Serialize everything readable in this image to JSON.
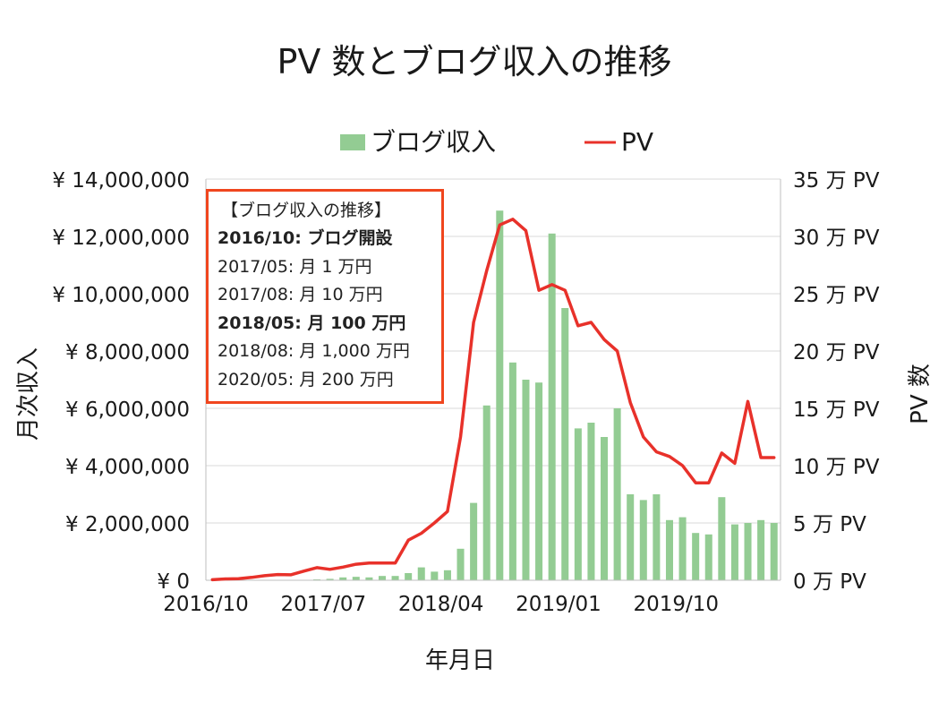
{
  "chart_data": {
    "type": "bar+line",
    "title": "PV 数とブログ収入の推移",
    "xlabel": "年月日",
    "ylabel_left": "月次収入",
    "ylabel_right": "PV 数",
    "legend": {
      "position": "top",
      "items": [
        "ブログ収入",
        "PV"
      ]
    },
    "colors": {
      "bar": "#93cc93",
      "line": "#e8312a",
      "grid": "#d9d9d9",
      "note_border": "#f0461e"
    },
    "y_left": {
      "min": 0,
      "max": 14000000,
      "ticks": [
        "¥ 0",
        "¥ 2,000,000",
        "¥ 4,000,000",
        "¥ 6,000,000",
        "¥ 8,000,000",
        "¥ 10,000,000",
        "¥ 12,000,000",
        "¥ 14,000,000"
      ]
    },
    "y_right": {
      "min": 0,
      "max": 350000,
      "ticks": [
        "0 万 PV",
        "5 万 PV",
        "10 万 PV",
        "15 万 PV",
        "20 万 PV",
        "25 万 PV",
        "30 万 PV",
        "35 万 PV"
      ]
    },
    "x_tick_labels": [
      {
        "index": 0,
        "label": "2016/10"
      },
      {
        "index": 9,
        "label": "2017/07"
      },
      {
        "index": 18,
        "label": "2018/04"
      },
      {
        "index": 27,
        "label": "2019/01"
      },
      {
        "index": 36,
        "label": "2019/10"
      }
    ],
    "months": [
      "2016/10",
      "2016/11",
      "2016/12",
      "2017/01",
      "2017/02",
      "2017/03",
      "2017/04",
      "2017/05",
      "2017/06",
      "2017/07",
      "2017/08",
      "2017/09",
      "2017/10",
      "2017/11",
      "2017/12",
      "2018/01",
      "2018/02",
      "2018/03",
      "2018/04",
      "2018/05",
      "2018/06",
      "2018/07",
      "2018/08",
      "2018/09",
      "2018/10",
      "2018/11",
      "2018/12",
      "2019/01",
      "2019/02",
      "2019/03",
      "2019/04",
      "2019/05",
      "2019/06",
      "2019/07",
      "2019/08",
      "2019/09",
      "2019/10",
      "2019/11",
      "2019/12",
      "2020/01",
      "2020/02",
      "2020/03",
      "2020/04",
      "2020/05"
    ],
    "series": [
      {
        "name": "ブログ収入",
        "kind": "bar",
        "axis": "left",
        "values": [
          0,
          0,
          0,
          0,
          0,
          0,
          0,
          10000,
          30000,
          50000,
          100000,
          120000,
          100000,
          150000,
          150000,
          250000,
          450000,
          300000,
          350000,
          1100000,
          2700000,
          6100000,
          12900000,
          7600000,
          7000000,
          6900000,
          12100000,
          9500000,
          5300000,
          5500000,
          5000000,
          6000000,
          3000000,
          2800000,
          3000000,
          2100000,
          2200000,
          1650000,
          1600000,
          2900000,
          1950000,
          2000000,
          2100000,
          2000000
        ]
      },
      {
        "name": "PV",
        "kind": "line",
        "axis": "right",
        "values": [
          500,
          1200,
          1300,
          2500,
          4000,
          5000,
          4800,
          8000,
          11000,
          9500,
          11500,
          14000,
          15000,
          15000,
          15000,
          35000,
          41000,
          50000,
          60000,
          125000,
          225000,
          270000,
          310000,
          315000,
          305000,
          253000,
          258000,
          253000,
          222000,
          225000,
          210000,
          200000,
          155000,
          125000,
          112000,
          108000,
          100000,
          85000,
          85000,
          111000,
          102000,
          156000,
          107000,
          107000
        ]
      }
    ]
  },
  "note_box": {
    "title": "【ブログ収入の推移】",
    "lines": [
      {
        "text": "2016/10: ブログ開設",
        "bold": true
      },
      {
        "text": "2017/05: 月 1 万円",
        "bold": false
      },
      {
        "text": "2017/08: 月 10 万円",
        "bold": false
      },
      {
        "text": "2018/05: 月 100 万円",
        "bold": true
      },
      {
        "text": "2018/08: 月 1,000 万円",
        "bold": false
      },
      {
        "text": "2020/05: 月 200 万円",
        "bold": false
      }
    ]
  }
}
